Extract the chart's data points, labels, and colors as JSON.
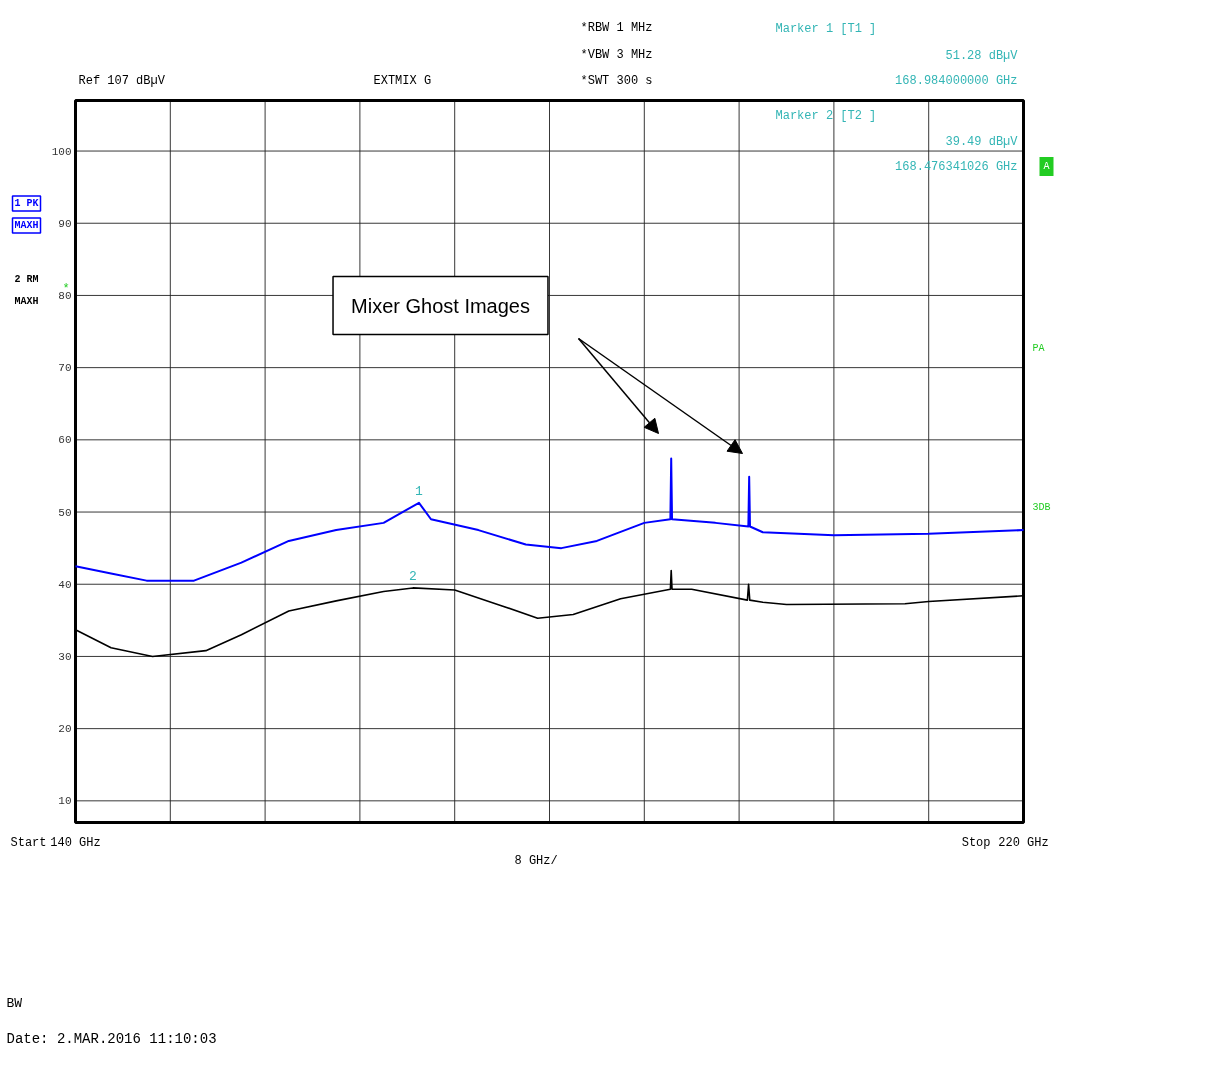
{
  "chart_data": {
    "type": "line",
    "x": [
      140,
      143,
      146,
      150,
      154,
      158,
      162,
      166,
      168.984,
      170,
      174,
      178,
      181,
      184,
      188,
      190.2,
      190.27,
      190.34,
      194,
      196.78,
      196.85,
      196.92,
      198,
      204,
      212,
      220
    ],
    "xlim": [
      140,
      220
    ],
    "xticks": [
      {
        "value": 140,
        "label": "140 GHz"
      },
      {
        "value": 148,
        "label": null
      },
      {
        "value": 156,
        "label": null
      },
      {
        "value": 164,
        "label": null
      },
      {
        "value": 172,
        "label": null
      },
      {
        "value": 180,
        "label": null
      },
      {
        "value": 188,
        "label": null
      },
      {
        "value": 196,
        "label": null
      },
      {
        "value": 204,
        "label": null
      },
      {
        "value": 212,
        "label": null
      },
      {
        "value": 220,
        "label": "220 GHz"
      }
    ],
    "ylim": [
      7,
      107
    ],
    "yticks": [
      10,
      20,
      30,
      40,
      50,
      60,
      70,
      80,
      90,
      100
    ],
    "grid": true,
    "series": [
      {
        "name": "1 PK MAXH",
        "color": "#0000ff",
        "values": [
          42.5,
          41.5,
          40.5,
          40.5,
          43,
          46,
          47.5,
          48.5,
          51.28,
          49,
          47.5,
          45.5,
          45,
          46,
          48.5,
          49,
          57.4,
          49,
          48.5,
          48,
          54.9,
          48,
          47.2,
          46.8,
          47,
          47.5
        ]
      },
      {
        "name": "2 RM MAXH",
        "color": "#000000",
        "x": [
          140,
          143,
          146.5,
          151,
          154,
          158,
          162,
          166,
          168.476,
          172,
          176,
          179,
          182,
          186,
          190.2,
          190.27,
          190.34,
          192,
          196.7,
          196.8,
          196.9,
          198,
          200,
          210,
          212,
          220
        ],
        "values": [
          33.7,
          31.2,
          30,
          30.8,
          33,
          36.3,
          37.7,
          39,
          39.49,
          39.2,
          37,
          35.3,
          35.8,
          38,
          39.3,
          41.9,
          39.3,
          39.3,
          37.8,
          40,
          37.8,
          37.5,
          37.2,
          37.3,
          37.6,
          38.4
        ]
      }
    ],
    "annotations": [
      "*RBW 1 MHz",
      "*VBW 3 MHz",
      "*SWT 300 s",
      "Ref 107 dBµV",
      "EXTMIX G",
      "Marker 1 [T1 ]",
      "51.28 dBµV",
      "168.984000000 GHz",
      "Marker 2 [T2 ]",
      "39.49 dBµV",
      "168.476341026 GHz",
      "A",
      "PA",
      "3DB",
      "Start",
      "8 GHz/",
      "Stop",
      "BW",
      "Date: 2.MAR.2016  11:10:03",
      "Mixer Ghost Images",
      "*",
      {
        "text": "1",
        "x": 168.984,
        "y": 51.28
      },
      {
        "text": "2",
        "x": 168.476,
        "y": 39.49
      }
    ]
  }
}
